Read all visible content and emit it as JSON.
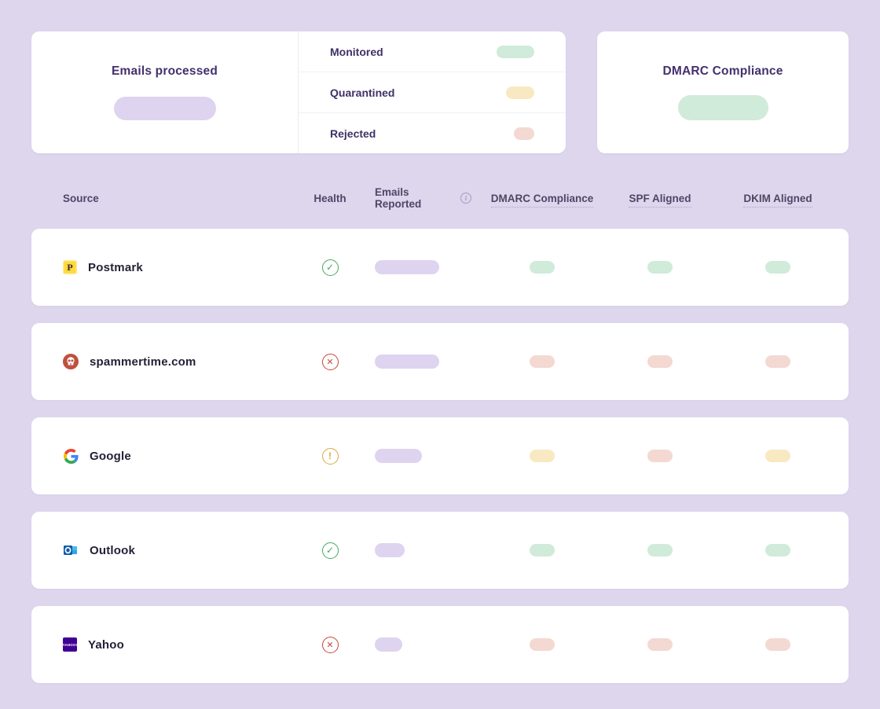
{
  "summary": {
    "emails_processed": {
      "title": "Emails processed",
      "value_pill_color": "lavender"
    },
    "breakdown": [
      {
        "label": "Monitored",
        "pill_color": "green",
        "pill_width": 48
      },
      {
        "label": "Quarantined",
        "pill_color": "yellow",
        "pill_width": 36
      },
      {
        "label": "Rejected",
        "pill_color": "red",
        "pill_width": 26
      }
    ],
    "dmarc_compliance": {
      "title": "DMARC Compliance",
      "value_pill_color": "green"
    }
  },
  "table": {
    "columns": [
      {
        "label": "Source"
      },
      {
        "label": "Health"
      },
      {
        "label": "Emails Reported",
        "info_icon": "info-icon"
      },
      {
        "label": "DMARC Compliance",
        "dotted_underline": true
      },
      {
        "label": "SPF Aligned",
        "dotted_underline": true
      },
      {
        "label": "DKIM Aligned",
        "dotted_underline": true
      }
    ],
    "rows": [
      {
        "source": "Postmark",
        "icon": "postmark-logo",
        "health": "ok",
        "emails_pill_width": 82,
        "dmarc": "green",
        "spf": "green",
        "dkim": "green"
      },
      {
        "source": "spammertime.com",
        "icon": "spammertime-logo",
        "health": "error",
        "emails_pill_width": 82,
        "dmarc": "red",
        "spf": "red",
        "dkim": "red"
      },
      {
        "source": "Google",
        "icon": "google-logo",
        "health": "warning",
        "emails_pill_width": 60,
        "dmarc": "yellow",
        "spf": "red",
        "dkim": "yellow"
      },
      {
        "source": "Outlook",
        "icon": "outlook-logo",
        "health": "ok",
        "emails_pill_width": 38,
        "dmarc": "green",
        "spf": "green",
        "dkim": "green"
      },
      {
        "source": "Yahoo",
        "icon": "yahoo-logo",
        "health": "error",
        "emails_pill_width": 35,
        "dmarc": "red",
        "spf": "red",
        "dkim": "red"
      }
    ]
  },
  "colors": {
    "background": "#ddd6ec",
    "card": "#ffffff",
    "title_text": "#43306d",
    "header_text": "#4f4668",
    "source_text": "#241f35",
    "pill_lavender": "#ded4ef",
    "pill_green": "#d0ebd9",
    "pill_yellow": "#f8e9c2",
    "pill_red": "#f3d9d2",
    "health_ok": "#43a95e",
    "health_error": "#c5473a",
    "health_warning": "#dda63c"
  },
  "logos": {
    "postmark_letter": "P",
    "yahoo_text": "YAHOO!"
  }
}
